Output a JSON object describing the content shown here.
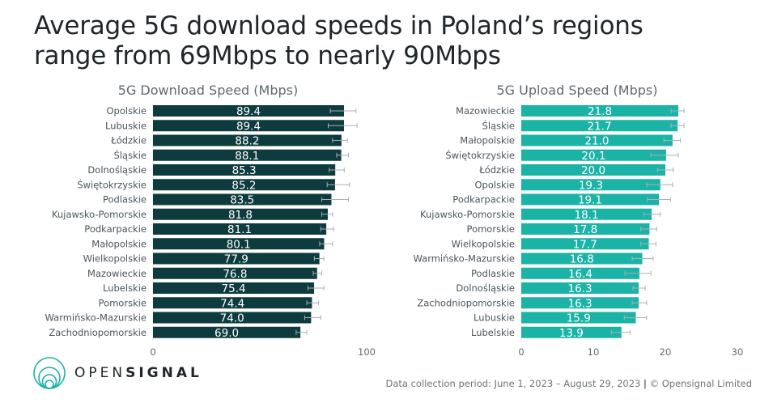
{
  "title_line1": "Average 5G download speeds in Poland’s regions",
  "title_line2": "range from 69Mbps to nearly 90Mbps",
  "logo": {
    "light": "OPEN",
    "bold": "SIGNAL"
  },
  "footer": {
    "period": "Data collection period: June 1, 2023 – August 29, 2023",
    "separator": "|",
    "copyright": "© Opensignal Limited"
  },
  "colors": {
    "download": "#0d3b3e",
    "upload": "#1ab3a6",
    "logo": "#1ab3a6"
  },
  "chart_data": [
    {
      "type": "bar",
      "orientation": "horizontal",
      "title": "5G Download Speed (Mbps)",
      "xlabel": "",
      "ylabel": "",
      "xlim": [
        0,
        100
      ],
      "ticks": [
        0,
        100
      ],
      "grid": false,
      "categories": [
        "Opolskie",
        "Lubuskie",
        "Łódzkie",
        "Śląskie",
        "Dolnośląskie",
        "Świętokrzyskie",
        "Podlaskie",
        "Kujawsko-Pomorskie",
        "Podkarpackie",
        "Małopolskie",
        "Wielkopolskie",
        "Mazowieckie",
        "Lubelskie",
        "Pomorskie",
        "Warmińsko-Mazurskie",
        "Zachodniopomorskie"
      ],
      "values": [
        89.4,
        89.4,
        88.2,
        88.1,
        85.3,
        85.2,
        83.5,
        81.8,
        81.1,
        80.1,
        77.9,
        76.8,
        75.4,
        74.4,
        74.0,
        69.0
      ],
      "error_low": [
        83.0,
        82.0,
        84.0,
        86.0,
        82.5,
        81.5,
        79.0,
        79.0,
        78.5,
        78.0,
        75.5,
        75.0,
        72.5,
        72.0,
        71.0,
        67.0
      ],
      "error_high": [
        95.0,
        95.5,
        91.0,
        91.5,
        89.5,
        92.0,
        91.5,
        84.0,
        84.5,
        84.0,
        80.0,
        79.0,
        80.0,
        77.5,
        78.5,
        72.0
      ],
      "value_labels": [
        "89.4",
        "89.4",
        "88.2",
        "88.1",
        "85.3",
        "85.2",
        "83.5",
        "81.8",
        "81.1",
        "80.1",
        "77.9",
        "76.8",
        "75.4",
        "74.4",
        "74.0",
        "69.0"
      ]
    },
    {
      "type": "bar",
      "orientation": "horizontal",
      "title": "5G Upload Speed (Mbps)",
      "xlabel": "",
      "ylabel": "",
      "xlim": [
        0,
        30
      ],
      "ticks": [
        0,
        10,
        20,
        30
      ],
      "grid": false,
      "categories": [
        "Mazowieckie",
        "Śląskie",
        "Małopolskie",
        "Świętokrzyskie",
        "Łódzkie",
        "Opolskie",
        "Podkarpackie",
        "Kujawsko-Pomorskie",
        "Pomorskie",
        "Wielkopolskie",
        "Warmińsko-Mazurskie",
        "Podlaskie",
        "Dolnośląskie",
        "Zachodniopomorskie",
        "Lubuskie",
        "Lubelskie"
      ],
      "values": [
        21.8,
        21.7,
        21.0,
        20.1,
        20.0,
        19.3,
        19.1,
        18.1,
        17.8,
        17.7,
        16.8,
        16.4,
        16.3,
        16.3,
        15.9,
        13.9
      ],
      "error_low": [
        20.8,
        20.8,
        19.8,
        18.0,
        18.9,
        17.4,
        17.5,
        17.0,
        16.6,
        16.6,
        15.4,
        14.4,
        15.5,
        15.4,
        14.3,
        12.5
      ],
      "error_high": [
        22.6,
        22.6,
        22.1,
        21.8,
        21.1,
        21.0,
        20.7,
        19.3,
        18.8,
        18.7,
        18.3,
        18.0,
        17.2,
        17.4,
        17.4,
        15.1
      ],
      "value_labels": [
        "21.8",
        "21.7",
        "21.0",
        "20.1",
        "20.0",
        "19.3",
        "19.1",
        "18.1",
        "17.8",
        "17.7",
        "16.8",
        "16.4",
        "16.3",
        "16.3",
        "15.9",
        "13.9"
      ]
    }
  ]
}
